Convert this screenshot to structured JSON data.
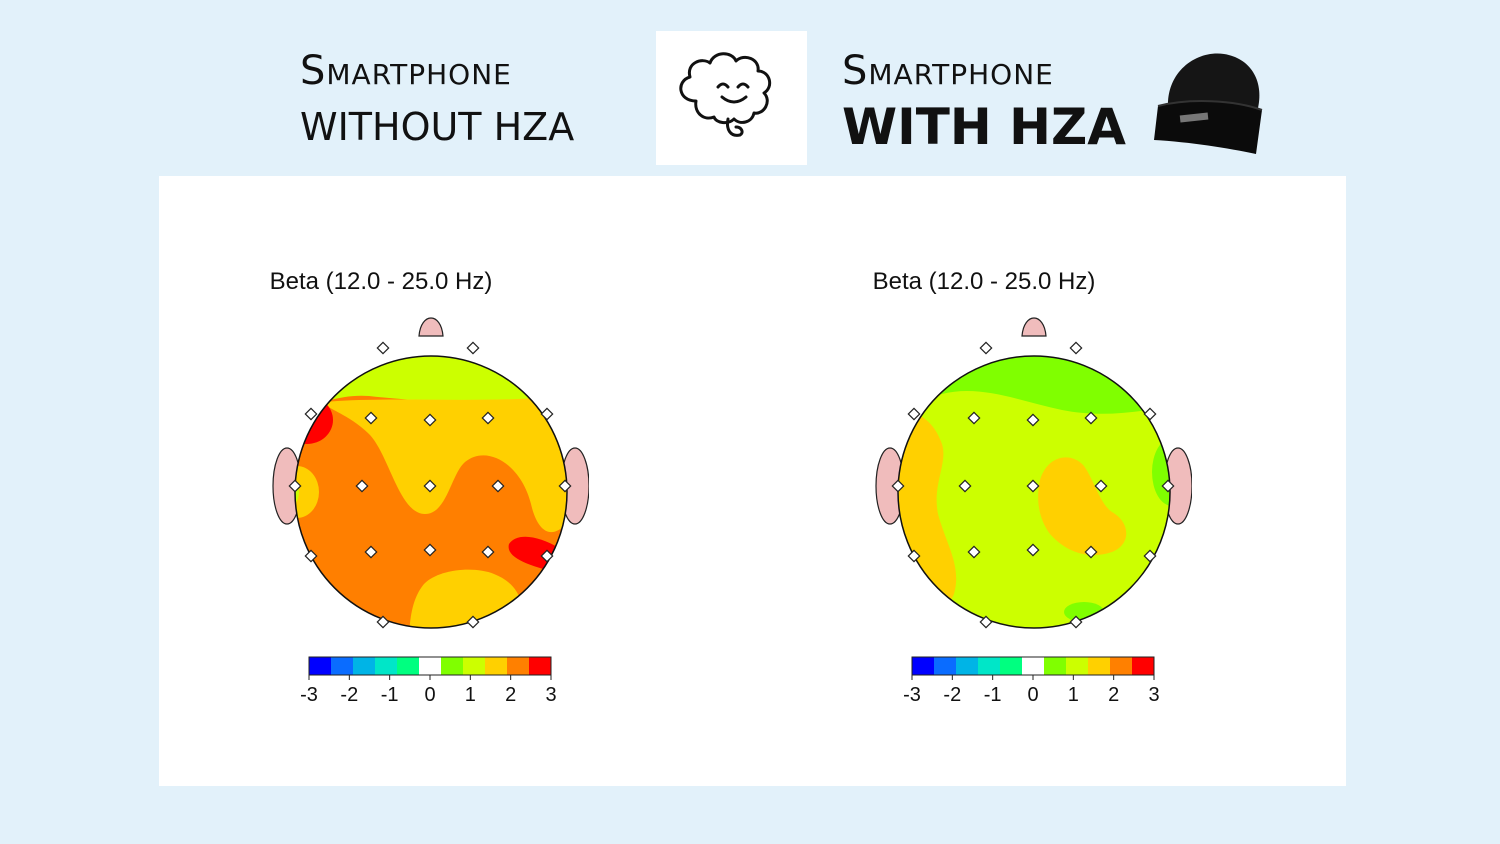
{
  "header": {
    "left": {
      "line1": "Smartphone",
      "line2": "WITHOUT HZA"
    },
    "right": {
      "line1": "Smartphone",
      "line2": "WITH HZA"
    },
    "center_icon": "brain-icon",
    "right_icon": "beanie-hat-icon"
  },
  "maps": [
    {
      "title": "Beta (12.0 - 25.0 Hz)",
      "base_level": 2,
      "colorbar_ticks": [
        "-3",
        "-2",
        "-1",
        "0",
        "1",
        "2",
        "3"
      ]
    },
    {
      "title": "Beta (12.0 - 25.0 Hz)",
      "base_level": 1,
      "colorbar_ticks": [
        "-3",
        "-2",
        "-1",
        "0",
        "1",
        "2",
        "3"
      ]
    }
  ],
  "colorbar": {
    "range": [
      -3,
      3
    ],
    "colors": [
      "#0000ff",
      "#0a6cff",
      "#00b4e6",
      "#00e6c8",
      "#00ff80",
      "#ffffff",
      "#80ff00",
      "#ccff00",
      "#ffd000",
      "#ff8000",
      "#ff0000"
    ]
  },
  "colors": {
    "background": "#e2f1fa",
    "head_outline": "#000000",
    "ear_fill": "#f0bcbc"
  }
}
